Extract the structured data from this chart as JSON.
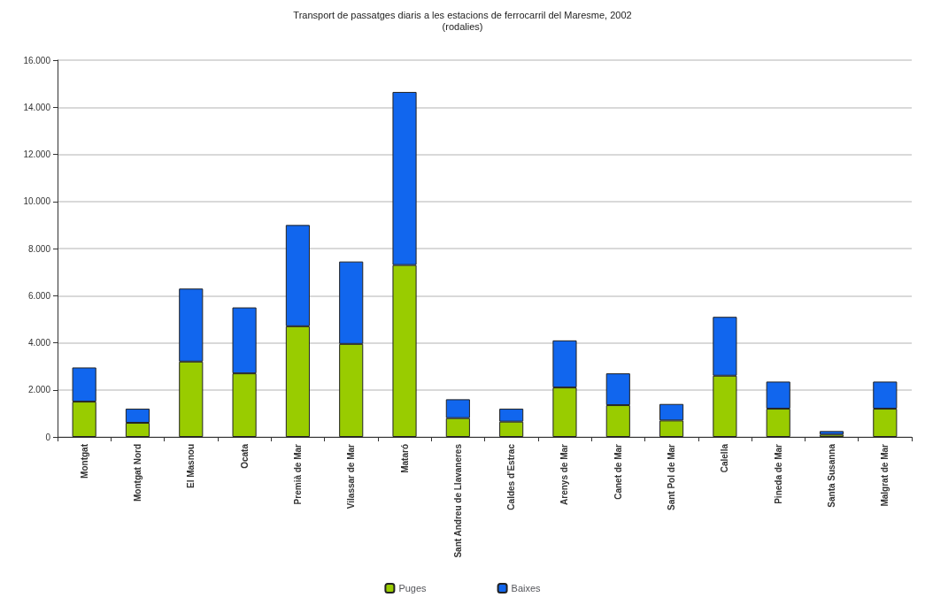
{
  "chart_data": {
    "type": "bar",
    "stacked": true,
    "title": "Transport de passatges diaris a les estacions de ferrocarril del Maresme, 2002",
    "subtitle": "(rodalies)",
    "categories": [
      "Montgat",
      "Montgat Nord",
      "El Masnou",
      "Ocata",
      "Premià de Mar",
      "Vilassar de Mar",
      "Mataró",
      "Sant Andreu de Llavaneres",
      "Caldes d'Estrac",
      "Arenys de Mar",
      "Canet de Mar",
      "Sant Pol de Mar",
      "Calella",
      "Pineda de Mar",
      "Santa Susanna",
      "Malgrat de Mar"
    ],
    "series": [
      {
        "name": "Puges",
        "color": "#99cc00",
        "values": [
          1500,
          600,
          3200,
          2700,
          4700,
          3950,
          7300,
          800,
          650,
          2100,
          1350,
          700,
          2600,
          1200,
          100,
          1200
        ]
      },
      {
        "name": "Baixes",
        "color": "#1166ee",
        "values": [
          1450,
          600,
          3100,
          2800,
          4300,
          3500,
          7350,
          800,
          550,
          2000,
          1350,
          700,
          2500,
          1150,
          150,
          1150
        ]
      }
    ],
    "ylim": [
      0,
      16000
    ],
    "yticks": [
      {
        "value": 0,
        "label": "0"
      },
      {
        "value": 2000,
        "label": "2.000"
      },
      {
        "value": 4000,
        "label": "4.000"
      },
      {
        "value": 6000,
        "label": "6.000"
      },
      {
        "value": 8000,
        "label": "8.000"
      },
      {
        "value": 10000,
        "label": "10.000"
      },
      {
        "value": 12000,
        "label": "12.000"
      },
      {
        "value": 14000,
        "label": "14.000"
      },
      {
        "value": 16000,
        "label": "16.000"
      }
    ],
    "grid": "y",
    "legend": "bottom"
  }
}
